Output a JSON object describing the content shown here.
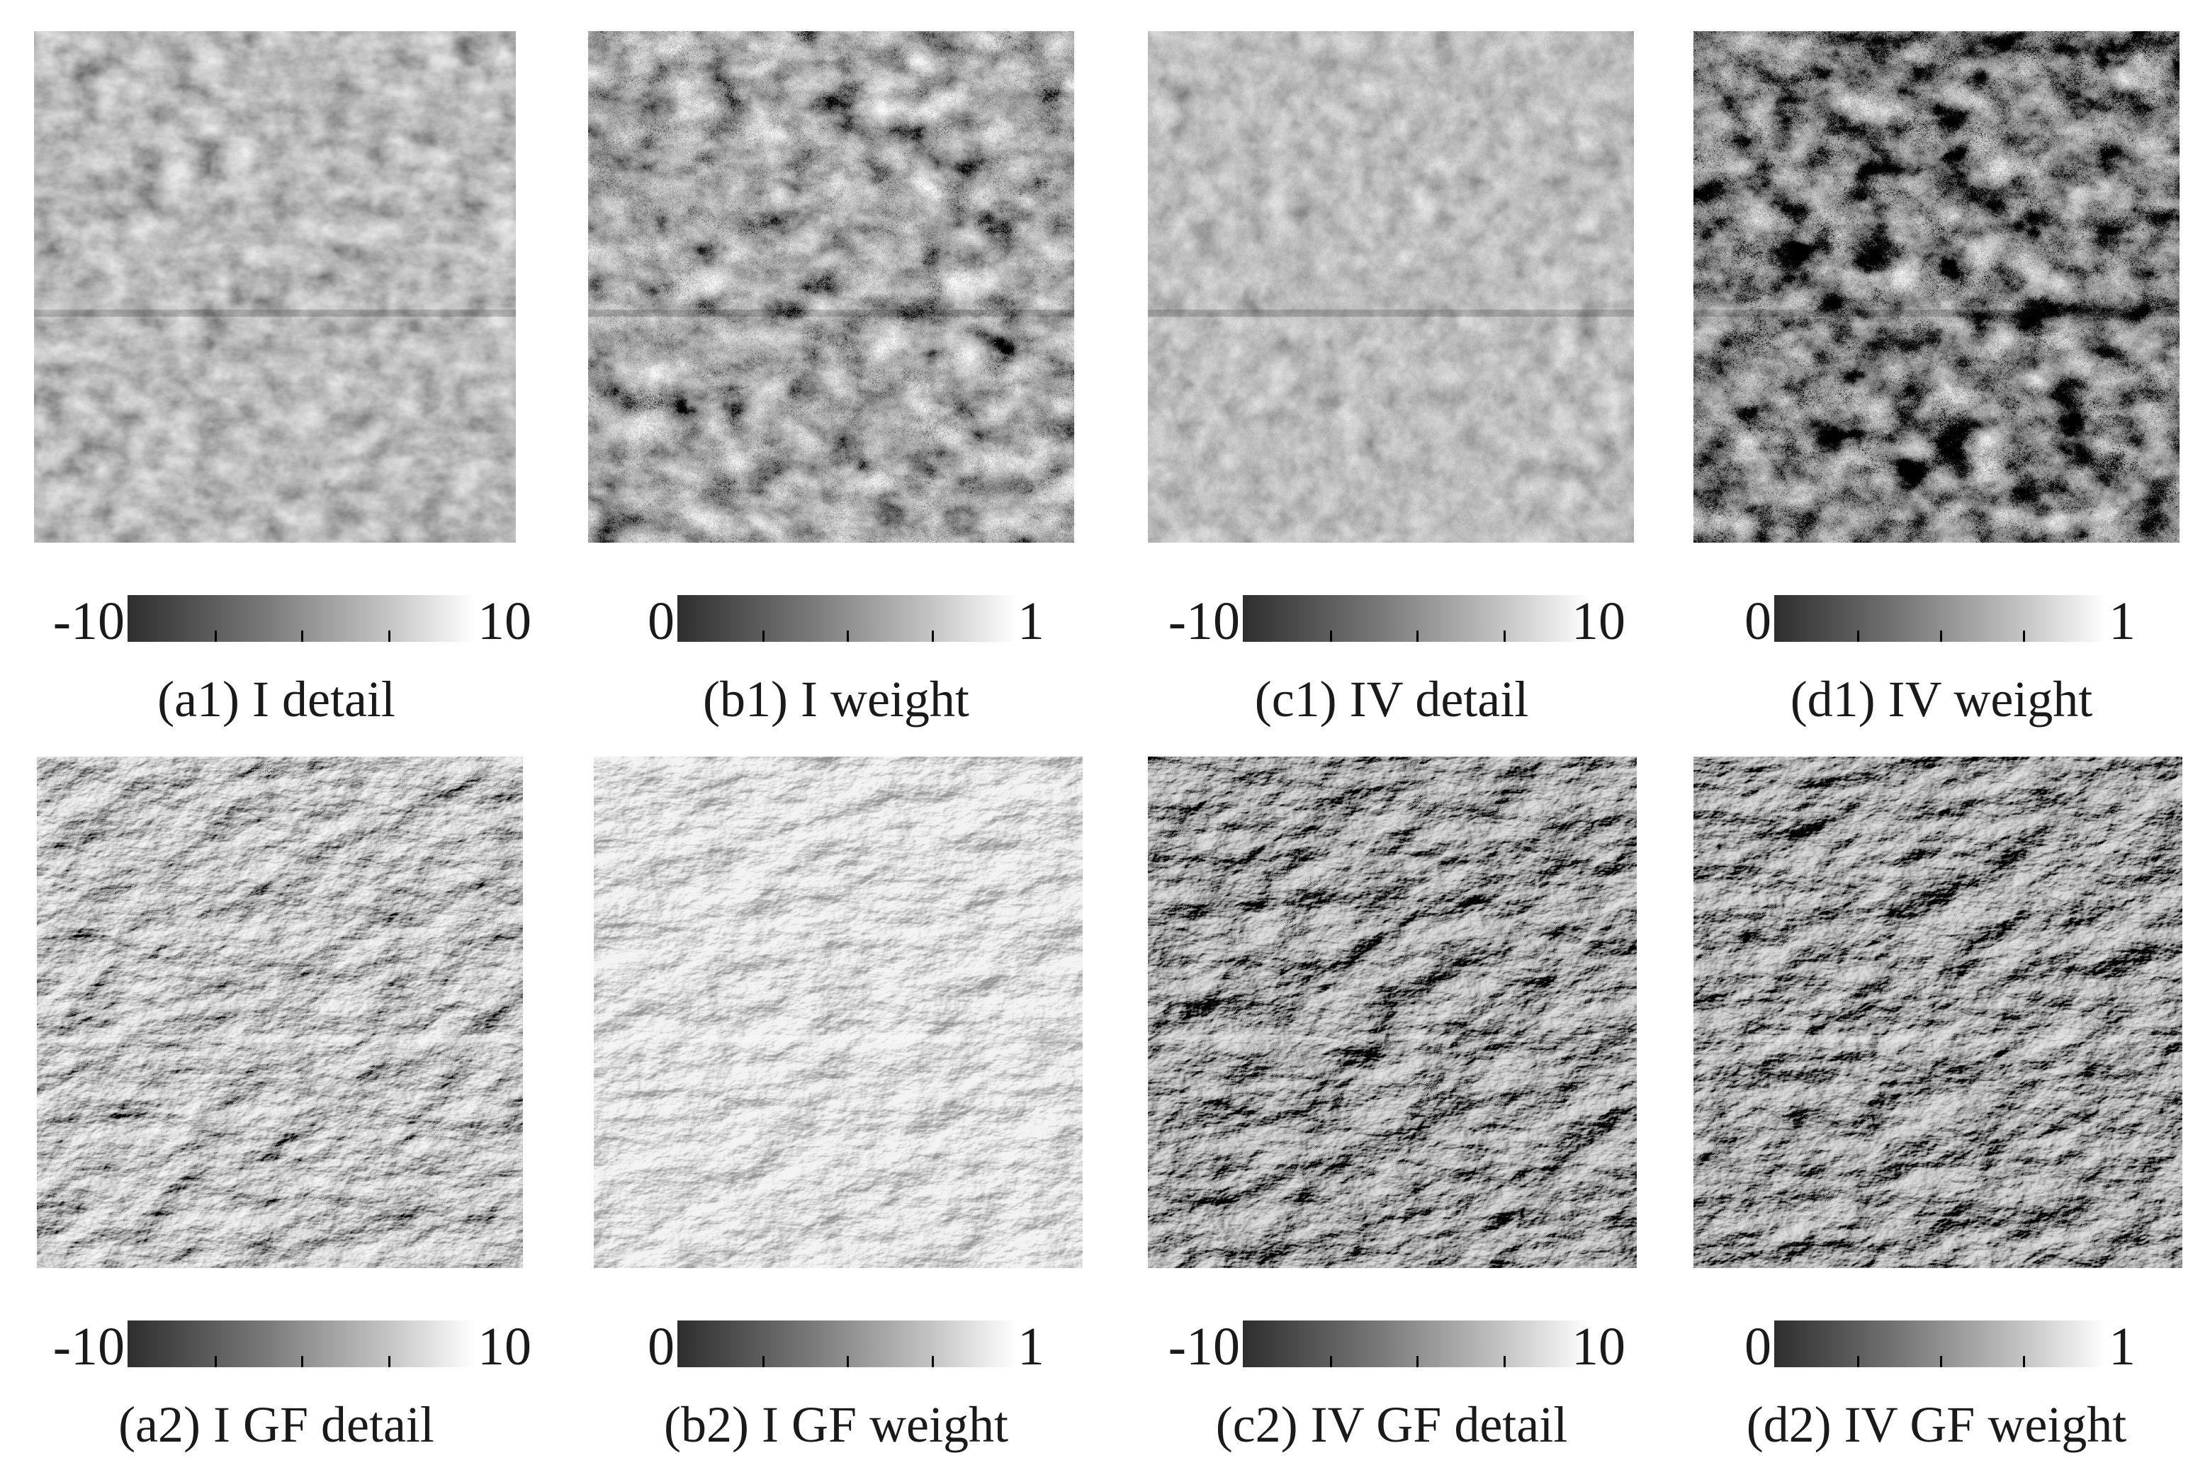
{
  "panels": [
    {
      "caption": "(a1) I detail",
      "cbar_min": "-10",
      "cbar_max": "10",
      "style": "detail-flat"
    },
    {
      "caption": "(b1) I weight",
      "cbar_min": "0",
      "cbar_max": "1",
      "style": "weight-noisy"
    },
    {
      "caption": "(c1) IV detail",
      "cbar_min": "-10",
      "cbar_max": "10",
      "style": "detail-grey"
    },
    {
      "caption": "(d1) IV weight",
      "cbar_min": "0",
      "cbar_max": "1",
      "style": "weight-noisy-dark"
    },
    {
      "caption": "(a2) I GF detail",
      "cbar_min": "-10",
      "cbar_max": "10",
      "style": "relief"
    },
    {
      "caption": "(b2) I GF weight",
      "cbar_min": "0",
      "cbar_max": "1",
      "style": "relief-light"
    },
    {
      "caption": "(c2) IV GF detail",
      "cbar_min": "-10",
      "cbar_max": "10",
      "style": "relief-dark"
    },
    {
      "caption": "(d2) IV GF weight",
      "cbar_min": "0",
      "cbar_max": "1",
      "style": "relief-dark"
    }
  ]
}
